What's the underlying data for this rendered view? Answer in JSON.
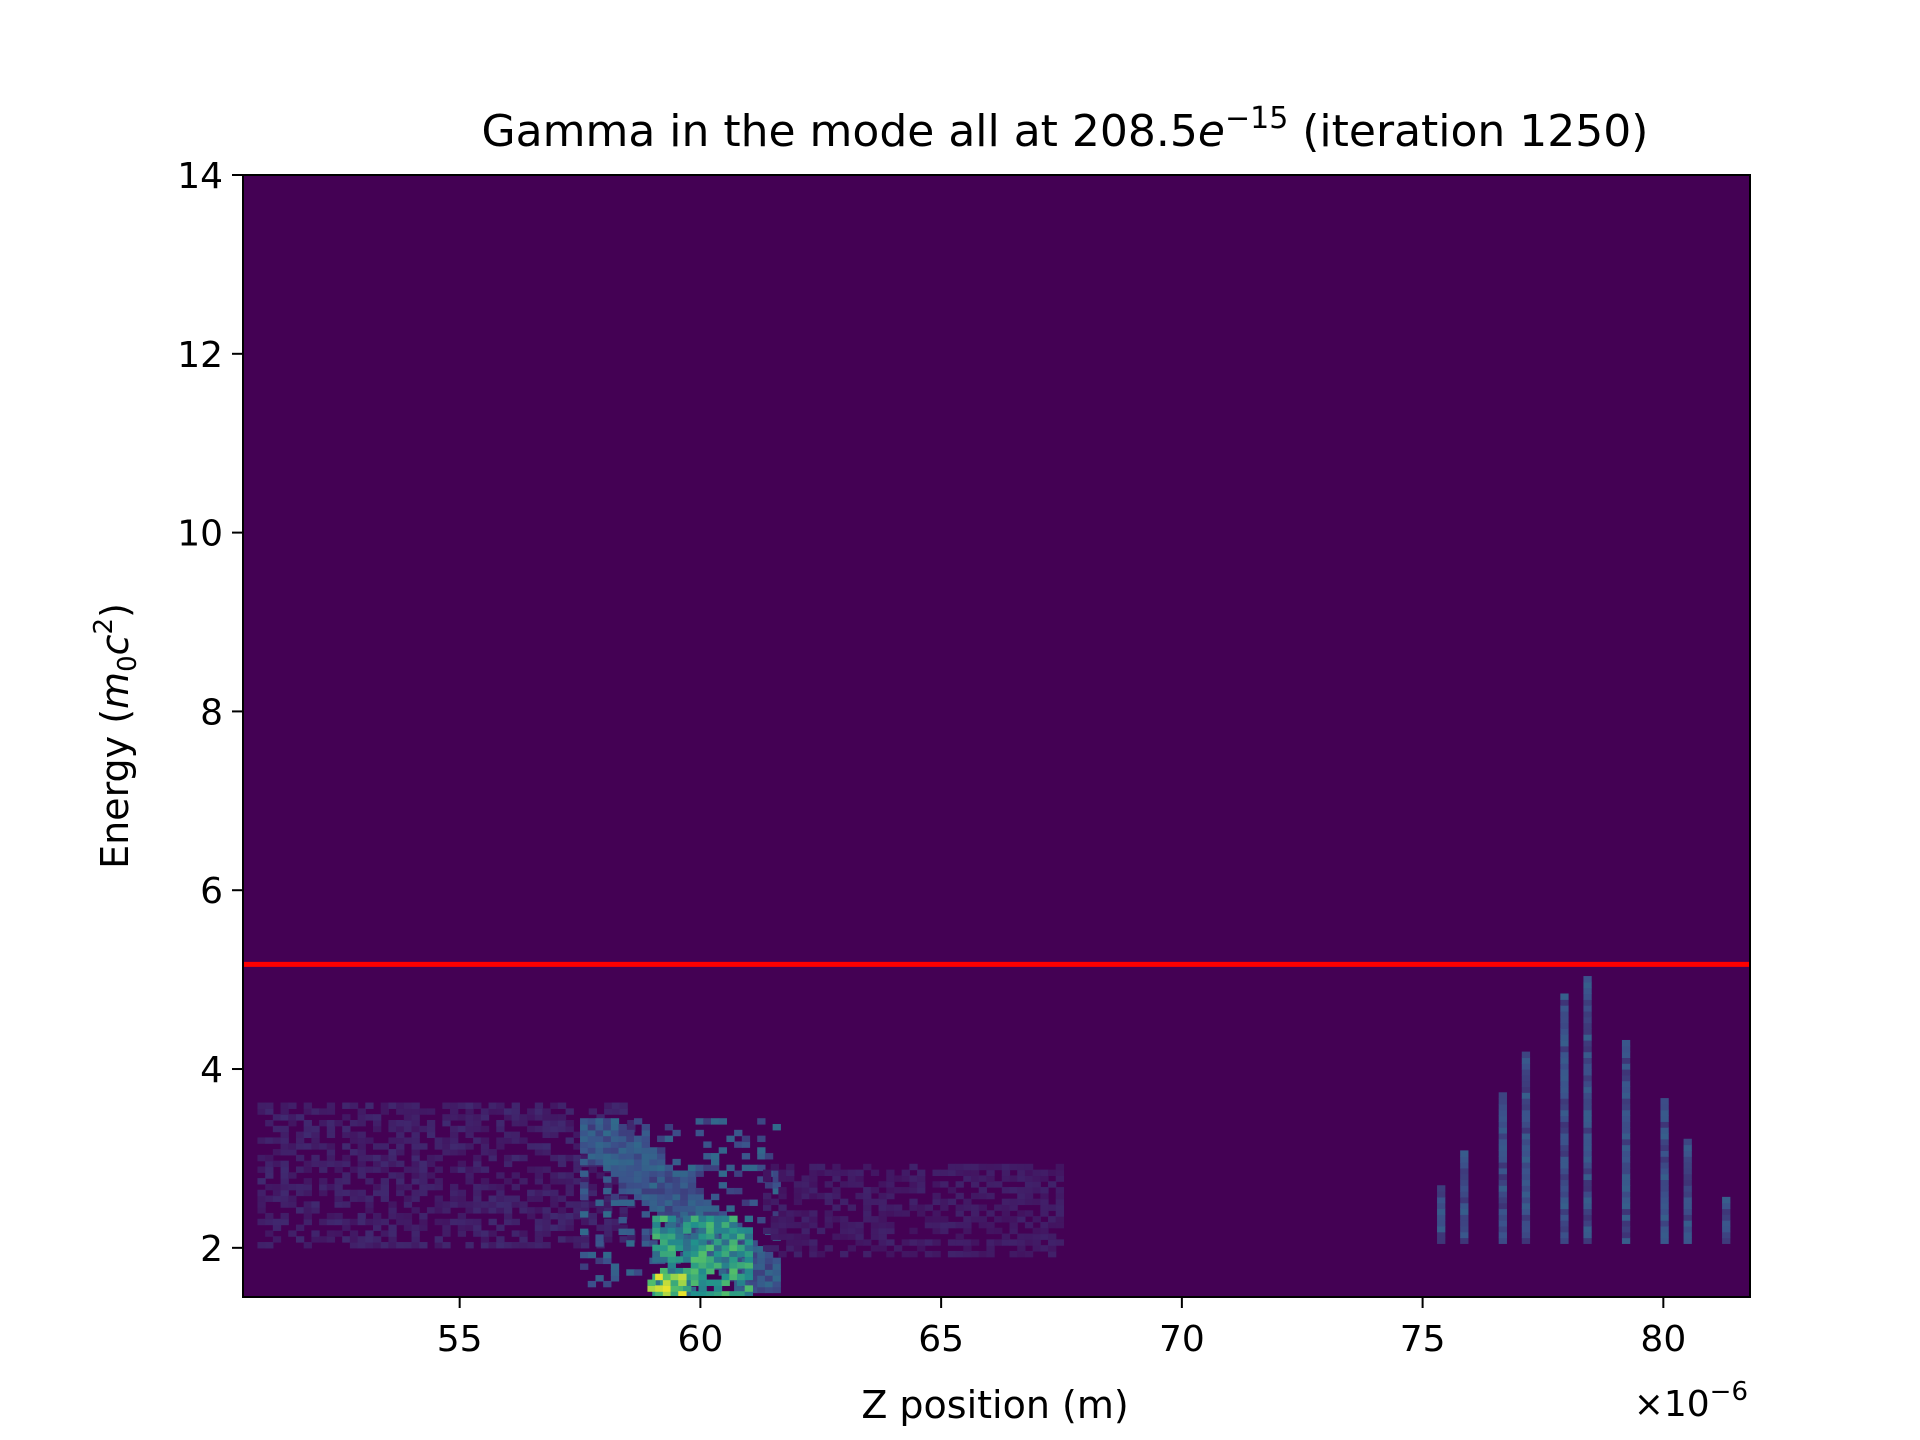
{
  "chart_data": {
    "type": "heatmap",
    "title": {
      "prefix": "Gamma in the mode all at 208.5",
      "base": "e",
      "exponent": "−15",
      "suffix": " (iteration 1250)"
    },
    "xlabel": "Z position (m)",
    "ylabel": {
      "prefix": "Energy (",
      "m": "m",
      "m_sub": "0",
      "c": "c",
      "c_sup": "2",
      "suffix": ")"
    },
    "x_offset_label": {
      "base": "×10",
      "exponent": "−6"
    },
    "xlim": [
      50.5,
      81.8
    ],
    "ylim": [
      1.45,
      14
    ],
    "x_ticks": [
      {
        "value": 55,
        "label": "55"
      },
      {
        "value": 60,
        "label": "60"
      },
      {
        "value": 65,
        "label": "65"
      },
      {
        "value": 70,
        "label": "70"
      },
      {
        "value": 75,
        "label": "75"
      },
      {
        "value": 80,
        "label": "80"
      }
    ],
    "y_ticks": [
      {
        "value": 2,
        "label": "2"
      },
      {
        "value": 4,
        "label": "4"
      },
      {
        "value": 6,
        "label": "6"
      },
      {
        "value": 8,
        "label": "8"
      },
      {
        "value": 10,
        "label": "10"
      },
      {
        "value": 12,
        "label": "12"
      },
      {
        "value": 14,
        "label": "14"
      }
    ],
    "colormap": "viridis",
    "background_color": "#440154",
    "reference_line": {
      "y": 5.17,
      "color": "#ff0000"
    },
    "density_features": [
      {
        "name": "trailing-plume",
        "x_range": [
          50.8,
          58.5
        ],
        "y_range": [
          2.0,
          3.6
        ],
        "intensity": 0.18
      },
      {
        "name": "arc-edge",
        "x_range": [
          57.5,
          61.5
        ],
        "y_range": [
          1.5,
          3.4
        ],
        "intensity": 0.35
      },
      {
        "name": "bunch-core",
        "x_range": [
          59.0,
          61.0
        ],
        "y_range": [
          1.45,
          2.3
        ],
        "intensity": 0.7
      },
      {
        "name": "bunch-peak",
        "x_range": [
          58.9,
          59.6
        ],
        "y_range": [
          1.45,
          1.65
        ],
        "intensity": 1.0
      },
      {
        "name": "wake-wave",
        "x_range": [
          61.3,
          67.5
        ],
        "y_range": [
          1.9,
          2.9
        ],
        "intensity": 0.15
      },
      {
        "name": "front-comb",
        "x_range": [
          75.3,
          81.5
        ],
        "y_range": [
          2.05,
          5.1
        ],
        "intensity": 0.3
      }
    ]
  }
}
